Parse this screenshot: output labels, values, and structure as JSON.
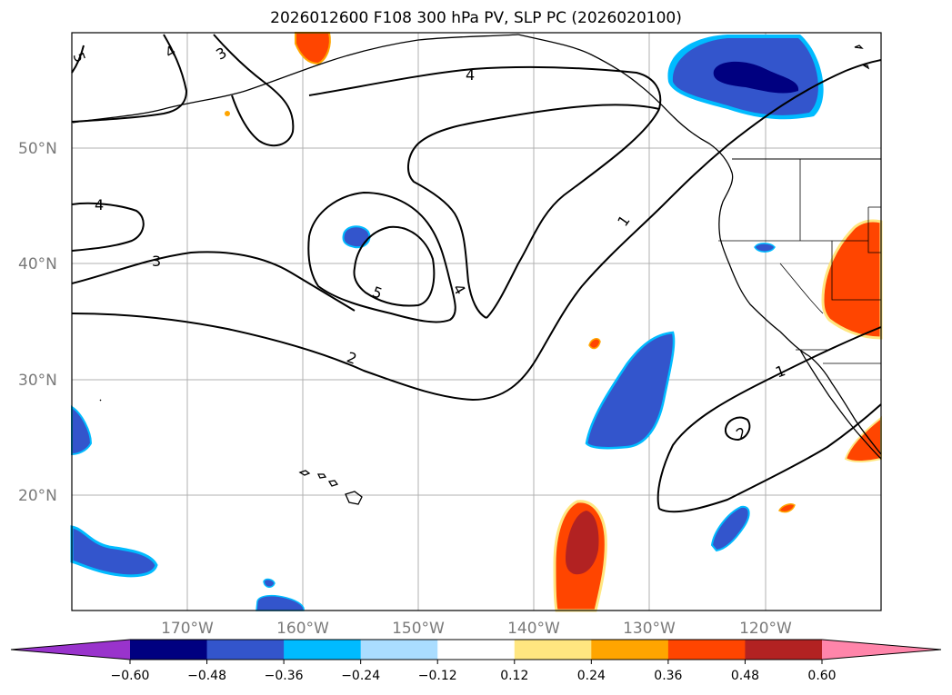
{
  "title": "2026012600 F108 300 hPa PV, SLP PC (2026020100)",
  "map": {
    "lon_range": [
      180,
      110
    ],
    "lat_range": [
      10,
      60
    ],
    "lat_labels": [
      "50°N",
      "40°N",
      "30°N",
      "20°N"
    ],
    "lon_labels": [
      "170°W",
      "160°W",
      "150°W",
      "140°W",
      "130°W",
      "120°W"
    ],
    "gridlines": true
  },
  "contour_labels": [
    {
      "text": "5"
    },
    {
      "text": "4"
    },
    {
      "text": "3"
    },
    {
      "text": "4"
    },
    {
      "text": "4"
    },
    {
      "text": "3"
    },
    {
      "text": "5"
    },
    {
      "text": "4"
    },
    {
      "text": "2"
    },
    {
      "text": "1"
    },
    {
      "text": "1"
    },
    {
      "text": "2"
    }
  ],
  "colorbar": {
    "ticks": [
      "−0.60",
      "−0.48",
      "−0.36",
      "−0.24",
      "−0.12",
      "0.12",
      "0.24",
      "0.36",
      "0.48",
      "0.60"
    ],
    "colors": [
      "#9933cc",
      "#000080",
      "#3355cc",
      "#00bbff",
      "#aaddff",
      "#ffffff",
      "#ffe680",
      "#ffa500",
      "#ff4500",
      "#b22222",
      "#ff85aa"
    ]
  }
}
